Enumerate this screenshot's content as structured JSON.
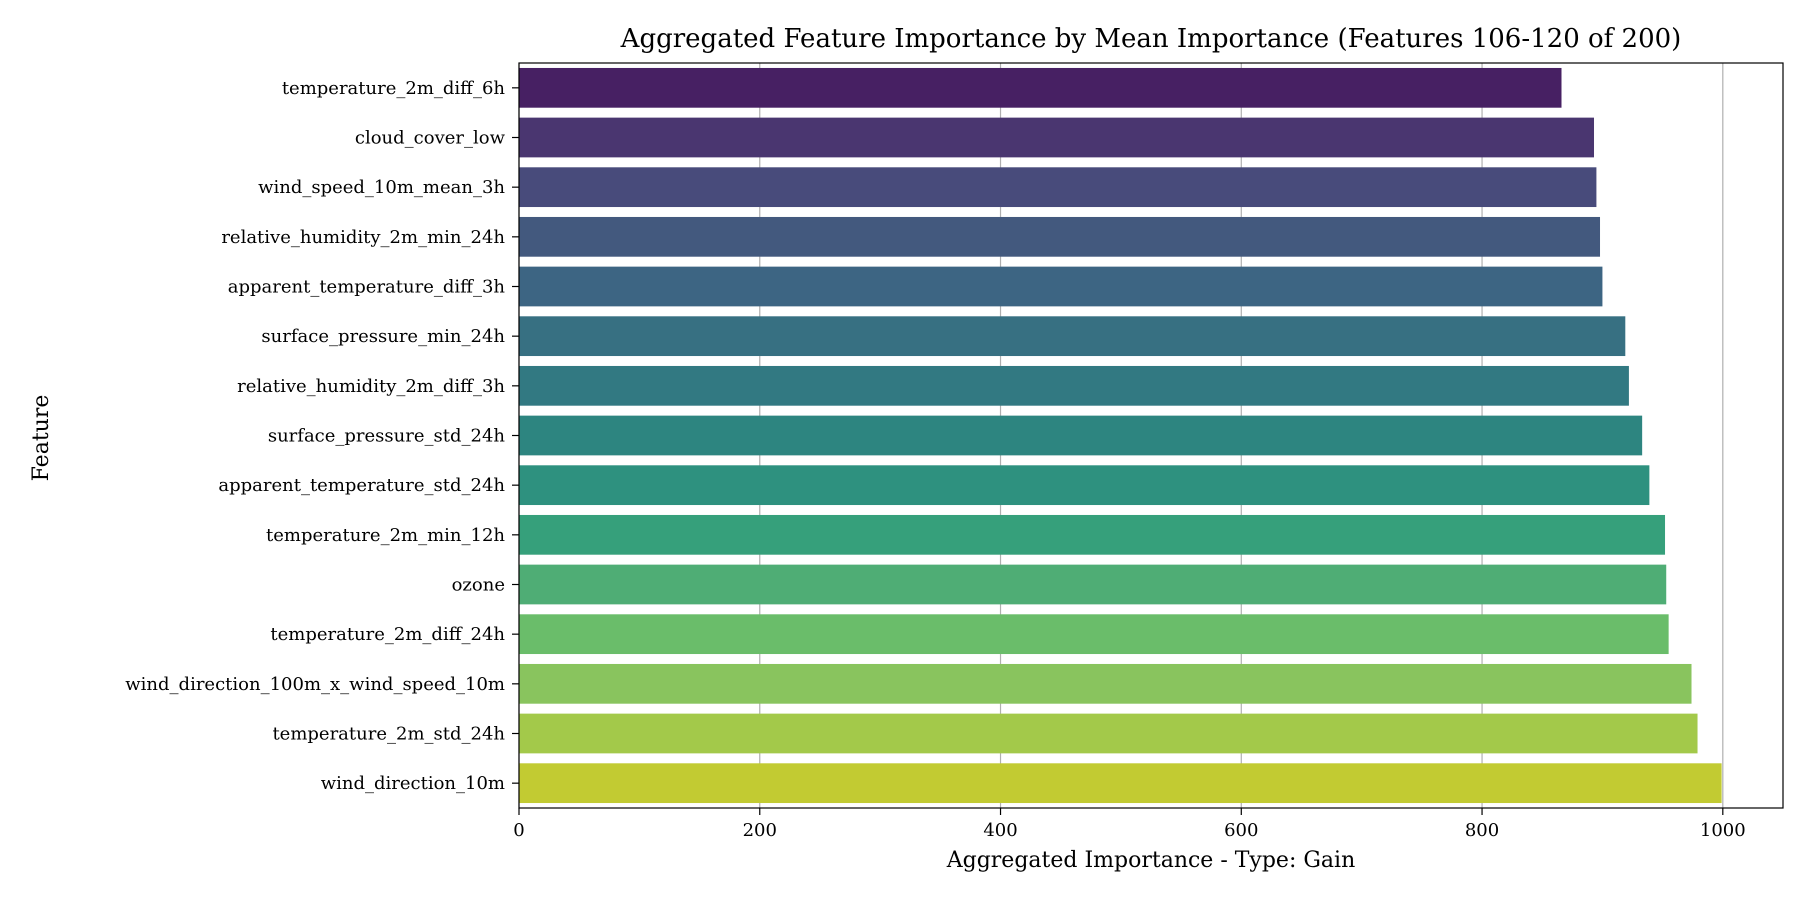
{
  "chart_data": {
    "type": "bar",
    "orientation": "horizontal",
    "title": "Aggregated Feature Importance by Mean Importance (Features 106-120 of 200)",
    "xlabel": "Aggregated Importance - Type: Gain",
    "ylabel": "Feature",
    "xlim": [
      0,
      1050
    ],
    "xticks": [
      0,
      200,
      400,
      600,
      800,
      1000
    ],
    "grid": "x-major",
    "legend": "none",
    "categories": [
      "temperature_2m_diff_6h",
      "cloud_cover_low",
      "wind_speed_10m_mean_3h",
      "relative_humidity_2m_min_24h",
      "apparent_temperature_diff_3h",
      "surface_pressure_min_24h",
      "relative_humidity_2m_diff_3h",
      "surface_pressure_std_24h",
      "apparent_temperature_std_24h",
      "temperature_2m_min_12h",
      "ozone",
      "temperature_2m_diff_24h",
      "wind_direction_100m_x_wind_speed_10m",
      "temperature_2m_std_24h",
      "wind_direction_10m"
    ],
    "values": [
      866,
      893,
      895,
      898,
      900,
      919,
      922,
      933,
      939,
      952,
      953,
      955,
      974,
      979,
      999
    ],
    "colors": [
      "#472063",
      "#4a3670",
      "#484b7b",
      "#43597e",
      "#3d6583",
      "#377082",
      "#327982",
      "#2d8580",
      "#2e917f",
      "#36a07b",
      "#4fad75",
      "#6abd6a",
      "#89c45e",
      "#a3c94a",
      "#c2cb32"
    ]
  }
}
